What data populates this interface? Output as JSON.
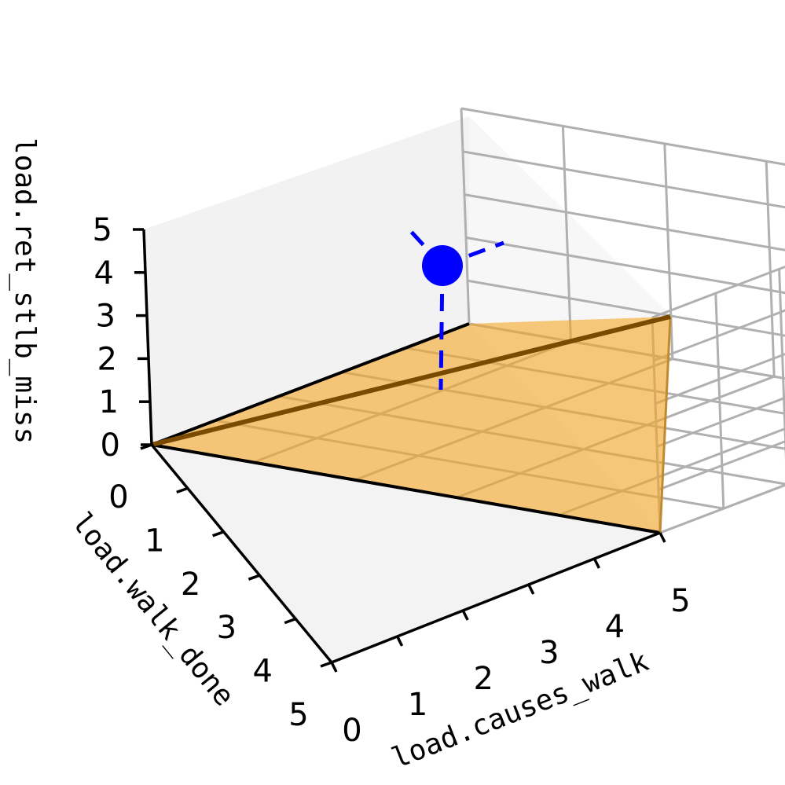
{
  "chart_data": {
    "type": "3d-region",
    "title": "",
    "axes": {
      "x": {
        "label": "load.causes_walk",
        "ticks": [
          "0",
          "1",
          "2",
          "3",
          "4",
          "5"
        ],
        "range": [
          0,
          5
        ]
      },
      "y": {
        "label": "load.walk_done",
        "ticks": [
          "0",
          "1",
          "2",
          "3",
          "4",
          "5"
        ],
        "range": [
          0,
          5
        ]
      },
      "z": {
        "label": "load.ret_stlb_miss",
        "ticks": [
          "0",
          "1",
          "2",
          "3",
          "4",
          "5"
        ],
        "range": [
          0,
          5
        ]
      }
    },
    "grid": true,
    "region": {
      "description_vertices": [
        [
          0,
          0,
          0
        ],
        [
          5,
          0,
          0
        ],
        [
          5,
          5,
          0
        ],
        [
          5,
          0,
          5
        ]
      ],
      "fill_color": "#f5a623",
      "edge_color": "#000000",
      "ridge_color": "#7a4a00"
    },
    "point": {
      "x": 1.6,
      "y": 4.5,
      "z": 3.6,
      "color": "#0000ff"
    }
  }
}
